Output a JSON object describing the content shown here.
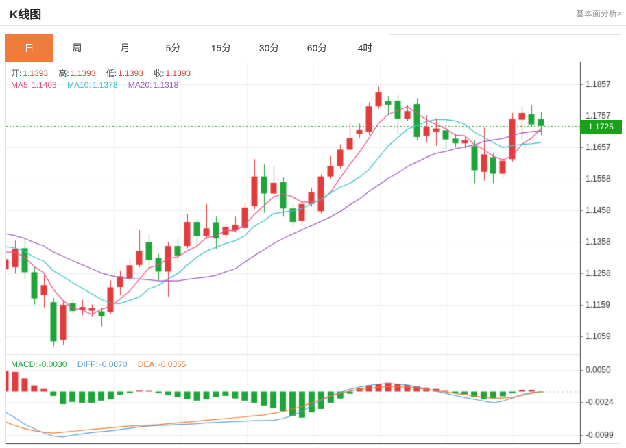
{
  "header": {
    "title": "K线图",
    "analysis_link": "基本面分析>"
  },
  "tabs": [
    {
      "key": "day",
      "label": "日",
      "active": true
    },
    {
      "key": "week",
      "label": "周",
      "active": false
    },
    {
      "key": "month",
      "label": "月",
      "active": false
    },
    {
      "key": "5min",
      "label": "5分",
      "active": false
    },
    {
      "key": "15min",
      "label": "15分",
      "active": false
    },
    {
      "key": "30min",
      "label": "30分",
      "active": false
    },
    {
      "key": "60min",
      "label": "60分",
      "active": false
    },
    {
      "key": "4hour",
      "label": "4时",
      "active": false
    }
  ],
  "legend": {
    "ohlc": {
      "open": {
        "label": "开:",
        "value": "1.1393"
      },
      "high": {
        "label": "高:",
        "value": "1.1393"
      },
      "low": {
        "label": "低:",
        "value": "1.1393"
      },
      "close": {
        "label": "收:",
        "value": "1.1393"
      }
    },
    "ma": {
      "ma5": {
        "label": "MA5:",
        "value": "1.1403"
      },
      "ma10": {
        "label": "MA10:",
        "value": "1.1378"
      },
      "ma20": {
        "label": "MA20:",
        "value": "1.1318"
      }
    }
  },
  "macd_legend": {
    "macd": {
      "label": "MACD:",
      "value": "-0.0030"
    },
    "diff": {
      "label": "DIFF:",
      "value": "-0.0070"
    },
    "dea": {
      "label": "DEA:",
      "value": "-0.0055"
    }
  },
  "colors": {
    "up": "#e13b3b",
    "down": "#1ea539",
    "price_tag_bg": "#1aa11a",
    "price_line": "#1aa11a",
    "ma5": "#e8528a",
    "ma10": "#3cc3cd",
    "ma20": "#a05cc4",
    "diff": "#5b9bd5",
    "dea": "#ed7d31",
    "tab_active": "#f07c3c",
    "grid": "#ededed",
    "grid_strong": "#e3e3e3",
    "axis_line": "#3a3a3a",
    "axis_text": "#333333",
    "muted_text": "#9a9a9a",
    "ohlc_value": "#e13b3b",
    "zero_dash": "#c8c8c8"
  },
  "chart_data": {
    "type": "candlestick",
    "title": "K线图",
    "legend_position": "top-left",
    "grid": true,
    "price_axis": {
      "side": "right",
      "ticks": [
        1.1857,
        1.1757,
        1.1657,
        1.1558,
        1.1458,
        1.1358,
        1.1258,
        1.1159,
        1.1059
      ],
      "range": [
        1.1857,
        1.1059
      ],
      "current_price": 1.1725,
      "current_price_label": "1.1725"
    },
    "macd_axis": {
      "side": "right",
      "ticks": [
        0.005,
        -0.0024,
        -0.0099
      ]
    },
    "candles": [
      [
        1.1271,
        1.1316,
        1.125,
        1.1303
      ],
      [
        1.1278,
        1.1362,
        1.1258,
        1.1336
      ],
      [
        1.1338,
        1.1366,
        1.124,
        1.1262
      ],
      [
        1.1262,
        1.1278,
        1.116,
        1.1179
      ],
      [
        1.119,
        1.1253,
        1.115,
        1.1221
      ],
      [
        1.1167,
        1.118,
        1.1028,
        1.1043
      ],
      [
        1.1048,
        1.1172,
        1.1032,
        1.1159
      ],
      [
        1.1164,
        1.1178,
        1.1128,
        1.1139
      ],
      [
        1.1143,
        1.1175,
        1.1125,
        1.1152
      ],
      [
        1.114,
        1.116,
        1.112,
        1.1148
      ],
      [
        1.1138,
        1.115,
        1.109,
        1.1122
      ],
      [
        1.1136,
        1.1236,
        1.113,
        1.1214
      ],
      [
        1.1215,
        1.1268,
        1.119,
        1.1249
      ],
      [
        1.1243,
        1.1305,
        1.1235,
        1.1284
      ],
      [
        1.1285,
        1.1395,
        1.1278,
        1.133
      ],
      [
        1.1357,
        1.1384,
        1.127,
        1.1301
      ],
      [
        1.1307,
        1.132,
        1.1236,
        1.1264
      ],
      [
        1.1264,
        1.1358,
        1.1183,
        1.1345
      ],
      [
        1.1345,
        1.1369,
        1.1293,
        1.1315
      ],
      [
        1.1345,
        1.1445,
        1.1338,
        1.1421
      ],
      [
        1.1421,
        1.143,
        1.1335,
        1.1377
      ],
      [
        1.1377,
        1.1478,
        1.1368,
        1.1401
      ],
      [
        1.142,
        1.1438,
        1.1335,
        1.1369
      ],
      [
        1.138,
        1.1415,
        1.1368,
        1.1406
      ],
      [
        1.1395,
        1.1438,
        1.1388,
        1.1412
      ],
      [
        1.1402,
        1.1482,
        1.1395,
        1.1467
      ],
      [
        1.1471,
        1.162,
        1.1462,
        1.1565
      ],
      [
        1.1565,
        1.1605,
        1.145,
        1.1511
      ],
      [
        1.1511,
        1.1598,
        1.1505,
        1.1545
      ],
      [
        1.1547,
        1.1562,
        1.1438,
        1.1464
      ],
      [
        1.1464,
        1.1478,
        1.1408,
        1.1421
      ],
      [
        1.1425,
        1.149,
        1.1412,
        1.1478
      ],
      [
        1.1478,
        1.153,
        1.147,
        1.1515
      ],
      [
        1.1455,
        1.1572,
        1.1448,
        1.1565
      ],
      [
        1.1565,
        1.163,
        1.1558,
        1.1598
      ],
      [
        1.1598,
        1.1667,
        1.159,
        1.165
      ],
      [
        1.165,
        1.1738,
        1.1645,
        1.1686
      ],
      [
        1.17,
        1.1733,
        1.1688,
        1.1712
      ],
      [
        1.1707,
        1.18,
        1.1696,
        1.1787
      ],
      [
        1.1787,
        1.185,
        1.178,
        1.1831
      ],
      [
        1.1803,
        1.182,
        1.176,
        1.1792
      ],
      [
        1.1805,
        1.1824,
        1.17,
        1.1748
      ],
      [
        1.1748,
        1.179,
        1.174,
        1.1772
      ],
      [
        1.1794,
        1.1813,
        1.1679,
        1.169
      ],
      [
        1.1694,
        1.1759,
        1.1672,
        1.1722
      ],
      [
        1.1707,
        1.175,
        1.1662,
        1.1717
      ],
      [
        1.1711,
        1.1728,
        1.1653,
        1.1682
      ],
      [
        1.1685,
        1.17,
        1.1657,
        1.167
      ],
      [
        1.167,
        1.169,
        1.1655,
        1.168
      ],
      [
        1.1661,
        1.168,
        1.1544,
        1.1585
      ],
      [
        1.158,
        1.172,
        1.1552,
        1.1635
      ],
      [
        1.1626,
        1.164,
        1.1544,
        1.1574
      ],
      [
        1.1574,
        1.1625,
        1.156,
        1.1615
      ],
      [
        1.162,
        1.1766,
        1.1612,
        1.1747
      ],
      [
        1.1745,
        1.1787,
        1.168,
        1.1766
      ],
      [
        1.1762,
        1.179,
        1.1722,
        1.173
      ],
      [
        1.1747,
        1.177,
        1.1696,
        1.1725
      ]
    ],
    "ma_periods": [
      5,
      10,
      20
    ],
    "ma_seed": [
      1.145,
      1.1445,
      1.144,
      1.1435,
      1.143,
      1.1425,
      1.142,
      1.141,
      1.14,
      1.139,
      1.138,
      1.137,
      1.136,
      1.135,
      1.1345,
      1.134,
      1.1335,
      1.133,
      1.132
    ],
    "macd": {
      "hist": [
        0.0047,
        0.0045,
        0.003,
        0.0014,
        0.0006,
        -0.001,
        -0.0029,
        -0.0024,
        -0.0026,
        -0.0026,
        -0.0021,
        -0.0018,
        -0.0007,
        -0.0004,
        0.0002,
        0.0001,
        -0.0004,
        -0.0008,
        -0.0013,
        -0.0018,
        -0.0021,
        -0.0018,
        -0.0013,
        -0.001,
        -0.0016,
        -0.0021,
        -0.0026,
        -0.0032,
        -0.0038,
        -0.0045,
        -0.0056,
        -0.006,
        -0.0048,
        -0.004,
        -0.0026,
        -0.0016,
        -0.0005,
        0.0007,
        0.0014,
        0.0018,
        0.002,
        0.0018,
        0.0015,
        0.0012,
        0.0009,
        0.0006,
        0.0001,
        -0.0004,
        -0.0006,
        -0.0013,
        -0.0018,
        -0.0016,
        -0.0011,
        -0.0004,
        0.0004,
        0.0004,
        -0.0001
      ],
      "diff": [
        -0.0048,
        -0.006,
        -0.0075,
        -0.0085,
        -0.0095,
        -0.0102,
        -0.0104,
        -0.01,
        -0.0097,
        -0.0094,
        -0.0092,
        -0.009,
        -0.0087,
        -0.0084,
        -0.0081,
        -0.0079,
        -0.0078,
        -0.0077,
        -0.0076,
        -0.0075,
        -0.0074,
        -0.0072,
        -0.0071,
        -0.007,
        -0.0069,
        -0.0068,
        -0.0067,
        -0.0067,
        -0.0066,
        -0.0062,
        -0.0055,
        -0.0046,
        -0.0032,
        -0.002,
        -0.001,
        -0.0002,
        0.0005,
        0.001,
        0.0014,
        0.0017,
        0.0018,
        0.0017,
        0.0015,
        0.0011,
        0.0006,
        0.0001,
        -0.0004,
        -0.0009,
        -0.0014,
        -0.0018,
        -0.0022,
        -0.0026,
        -0.0022,
        -0.0015,
        -0.0007,
        -0.0002,
        -0.0001
      ],
      "dea": [
        -0.007,
        -0.0078,
        -0.0085,
        -0.009,
        -0.0093,
        -0.0095,
        -0.0093,
        -0.0091,
        -0.0089,
        -0.0087,
        -0.0085,
        -0.0083,
        -0.0081,
        -0.0079,
        -0.0078,
        -0.0077,
        -0.0076,
        -0.0074,
        -0.0072,
        -0.007,
        -0.0068,
        -0.0066,
        -0.0064,
        -0.0062,
        -0.006,
        -0.0058,
        -0.0056,
        -0.0054,
        -0.005,
        -0.0046,
        -0.004,
        -0.0034,
        -0.0026,
        -0.0018,
        -0.001,
        -0.0004,
        0.0001,
        0.0005,
        0.0008,
        0.001,
        0.0011,
        0.0011,
        0.001,
        0.0008,
        0.0005,
        0.0002,
        -0.0001,
        -0.0004,
        -0.0007,
        -0.001,
        -0.0013,
        -0.0015,
        -0.0015,
        -0.0013,
        -0.0009,
        -0.0004,
        -0.0001
      ]
    }
  }
}
